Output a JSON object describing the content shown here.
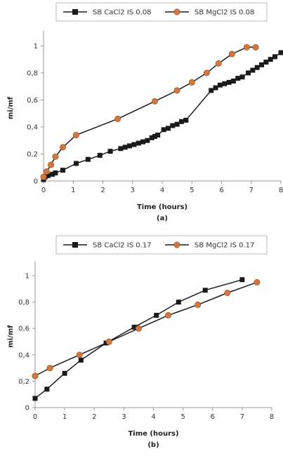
{
  "colors": {
    "series_square": "#1a1a1a",
    "series_circle": "#d2773f",
    "axis": "#999999"
  },
  "chart_data": [
    {
      "type": "line",
      "panel_label": "(a)",
      "xlabel": "Time (hours)",
      "ylabel": "mi/mf",
      "xlim": [
        0,
        8
      ],
      "ylim": [
        0,
        1.08
      ],
      "xticks": [
        "0",
        "1",
        "2",
        "3",
        "4",
        "5",
        "6",
        "7",
        "8"
      ],
      "yticks": [
        "0",
        "0,2",
        "0,4",
        "0,6",
        "0,8",
        "1"
      ],
      "grid": false,
      "legend_position": "top",
      "series": [
        {
          "name": "SB CaCl2 IS 0.08",
          "marker": "square",
          "x": [
            0,
            0.05,
            0.15,
            0.3,
            0.4,
            0.65,
            1.1,
            1.5,
            1.9,
            2.25,
            2.6,
            2.75,
            2.9,
            3.05,
            3.2,
            3.35,
            3.5,
            3.65,
            3.75,
            3.85,
            4.05,
            4.2,
            4.35,
            4.5,
            4.65,
            4.8,
            5.65,
            5.8,
            5.95,
            6.1,
            6.25,
            6.4,
            6.55,
            6.7,
            6.9,
            7.05,
            7.2,
            7.35,
            7.5,
            7.65,
            7.8,
            8.0
          ],
          "y": [
            0.01,
            0.03,
            0.04,
            0.05,
            0.06,
            0.08,
            0.13,
            0.16,
            0.19,
            0.22,
            0.24,
            0.25,
            0.26,
            0.27,
            0.28,
            0.29,
            0.3,
            0.32,
            0.33,
            0.34,
            0.38,
            0.39,
            0.41,
            0.42,
            0.44,
            0.45,
            0.67,
            0.69,
            0.71,
            0.72,
            0.73,
            0.74,
            0.76,
            0.77,
            0.8,
            0.82,
            0.84,
            0.86,
            0.88,
            0.9,
            0.92,
            0.95
          ]
        },
        {
          "name": "SB MgCl2 IS 0.08",
          "marker": "circle",
          "x": [
            0,
            0.1,
            0.25,
            0.4,
            0.65,
            1.1,
            2.5,
            3.75,
            4.5,
            5.0,
            5.5,
            5.9,
            6.35,
            6.85,
            7.15
          ],
          "y": [
            0.03,
            0.07,
            0.12,
            0.18,
            0.25,
            0.34,
            0.46,
            0.59,
            0.67,
            0.73,
            0.8,
            0.87,
            0.94,
            0.99,
            0.99
          ]
        }
      ]
    },
    {
      "type": "line",
      "panel_label": "(b)",
      "xlabel": "Time (hours)",
      "ylabel": "mi/mf",
      "xlim": [
        0,
        8
      ],
      "ylim": [
        0,
        1.08
      ],
      "xticks": [
        "0",
        "1",
        "2",
        "3",
        "4",
        "5",
        "6",
        "7",
        "8"
      ],
      "yticks": [
        "0",
        "0,2",
        "0,4",
        "0,6",
        "0,8",
        "1"
      ],
      "grid": false,
      "legend_position": "top",
      "series": [
        {
          "name": "SB CaCl2 IS 0.17",
          "marker": "square",
          "x": [
            0,
            0.4,
            1.0,
            1.55,
            2.4,
            3.35,
            4.1,
            4.85,
            5.75,
            7.0
          ],
          "y": [
            0.07,
            0.14,
            0.26,
            0.36,
            0.49,
            0.61,
            0.7,
            0.8,
            0.89,
            0.97
          ]
        },
        {
          "name": "SB MgCl2 IS 0.17",
          "marker": "circle",
          "x": [
            0,
            0.5,
            1.5,
            2.5,
            3.5,
            4.5,
            5.5,
            6.5,
            7.5
          ],
          "y": [
            0.24,
            0.3,
            0.4,
            0.5,
            0.6,
            0.7,
            0.78,
            0.87,
            0.95
          ]
        }
      ]
    }
  ]
}
